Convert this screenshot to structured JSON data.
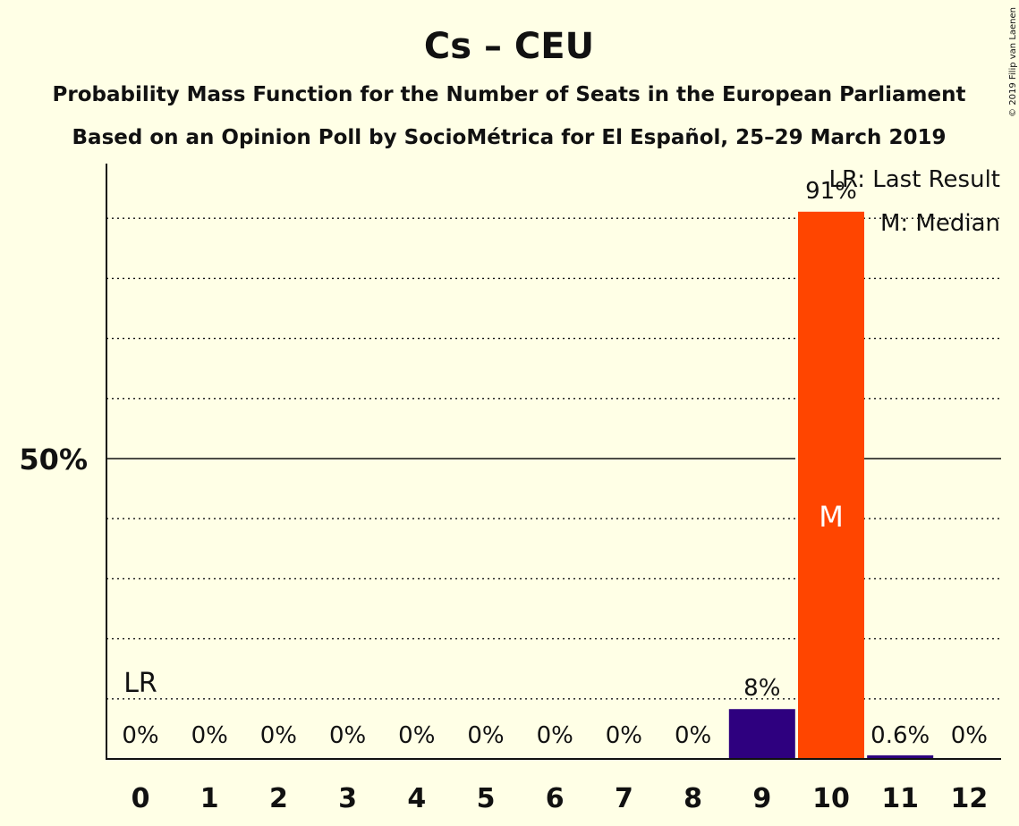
{
  "title": "Cs – CEU",
  "subtitle1": "Probability Mass Function for the Number of Seats in the European Parliament",
  "subtitle2": "Based on an Opinion Poll by SocioMétrica for El Español, 25–29 March 2019",
  "copyright": "© 2019 Filip van Laenen",
  "legend": {
    "lr": "LR: Last Result",
    "m": "M: Median"
  },
  "colors": {
    "background": "#ffffe6",
    "median_bar": "#ff4500",
    "other_bar": "#2e007f"
  },
  "chart_data": {
    "type": "bar",
    "categories": [
      "0",
      "1",
      "2",
      "3",
      "4",
      "5",
      "6",
      "7",
      "8",
      "9",
      "10",
      "11",
      "12"
    ],
    "values": [
      0,
      0,
      0,
      0,
      0,
      0,
      0,
      0,
      0,
      8.3,
      91.1,
      0.6,
      0
    ],
    "labels": [
      "0%",
      "0%",
      "0%",
      "0%",
      "0%",
      "0%",
      "0%",
      "0%",
      "0%",
      "8%",
      "91%",
      "0.6%",
      "0%"
    ],
    "ylim": [
      0,
      100
    ],
    "ytick": {
      "value": 50,
      "label": "50%"
    },
    "gridlines": [
      10,
      20,
      30,
      40,
      60,
      70,
      80,
      90
    ],
    "median_seat": "10",
    "median_marker": "M",
    "last_result_seat": "0",
    "last_result_marker": "LR"
  }
}
